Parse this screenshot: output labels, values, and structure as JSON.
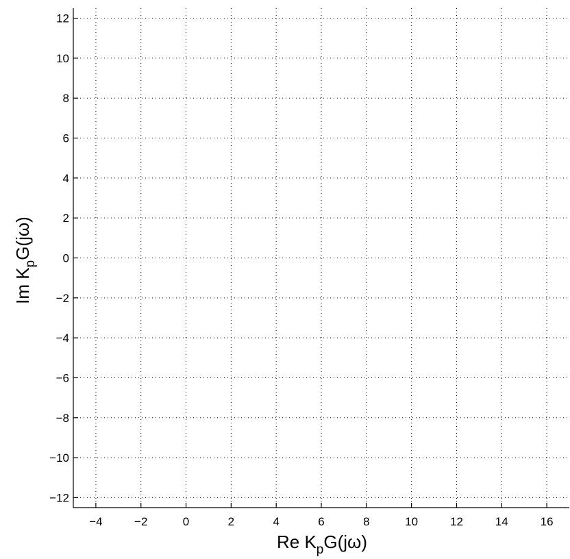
{
  "chart_data": {
    "type": "scatter",
    "xlabel": {
      "main": "Re K",
      "sub": "p",
      "rest": "G(jω)"
    },
    "ylabel": {
      "main": "Im K",
      "sub": "p",
      "rest": "G(jω)"
    },
    "xlim": [
      -5,
      17
    ],
    "ylim": [
      -12.5,
      12.5
    ],
    "x_ticks": [
      -4,
      -2,
      0,
      2,
      4,
      6,
      8,
      10,
      12,
      14,
      16
    ],
    "y_ticks": [
      -12,
      -10,
      -8,
      -6,
      -4,
      -2,
      0,
      2,
      4,
      6,
      8,
      10,
      12
    ],
    "grid": true,
    "series": []
  }
}
